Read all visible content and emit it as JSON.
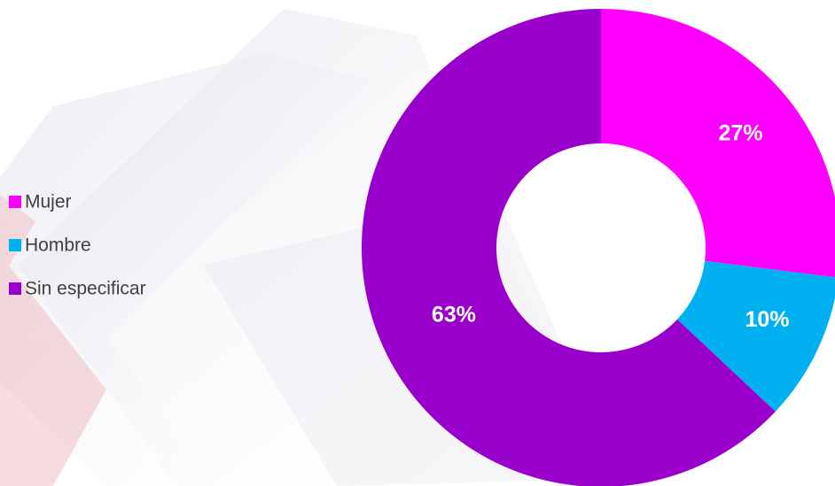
{
  "chart_data": {
    "type": "pie",
    "donut": true,
    "categories": [
      "Mujer",
      "Hombre",
      "Sin especificar"
    ],
    "values": [
      27,
      10,
      63
    ],
    "value_labels": [
      "27%",
      "10%",
      "63%"
    ],
    "colors": [
      "#ff00ff",
      "#00b0f0",
      "#9900cc"
    ],
    "legend": "left"
  }
}
